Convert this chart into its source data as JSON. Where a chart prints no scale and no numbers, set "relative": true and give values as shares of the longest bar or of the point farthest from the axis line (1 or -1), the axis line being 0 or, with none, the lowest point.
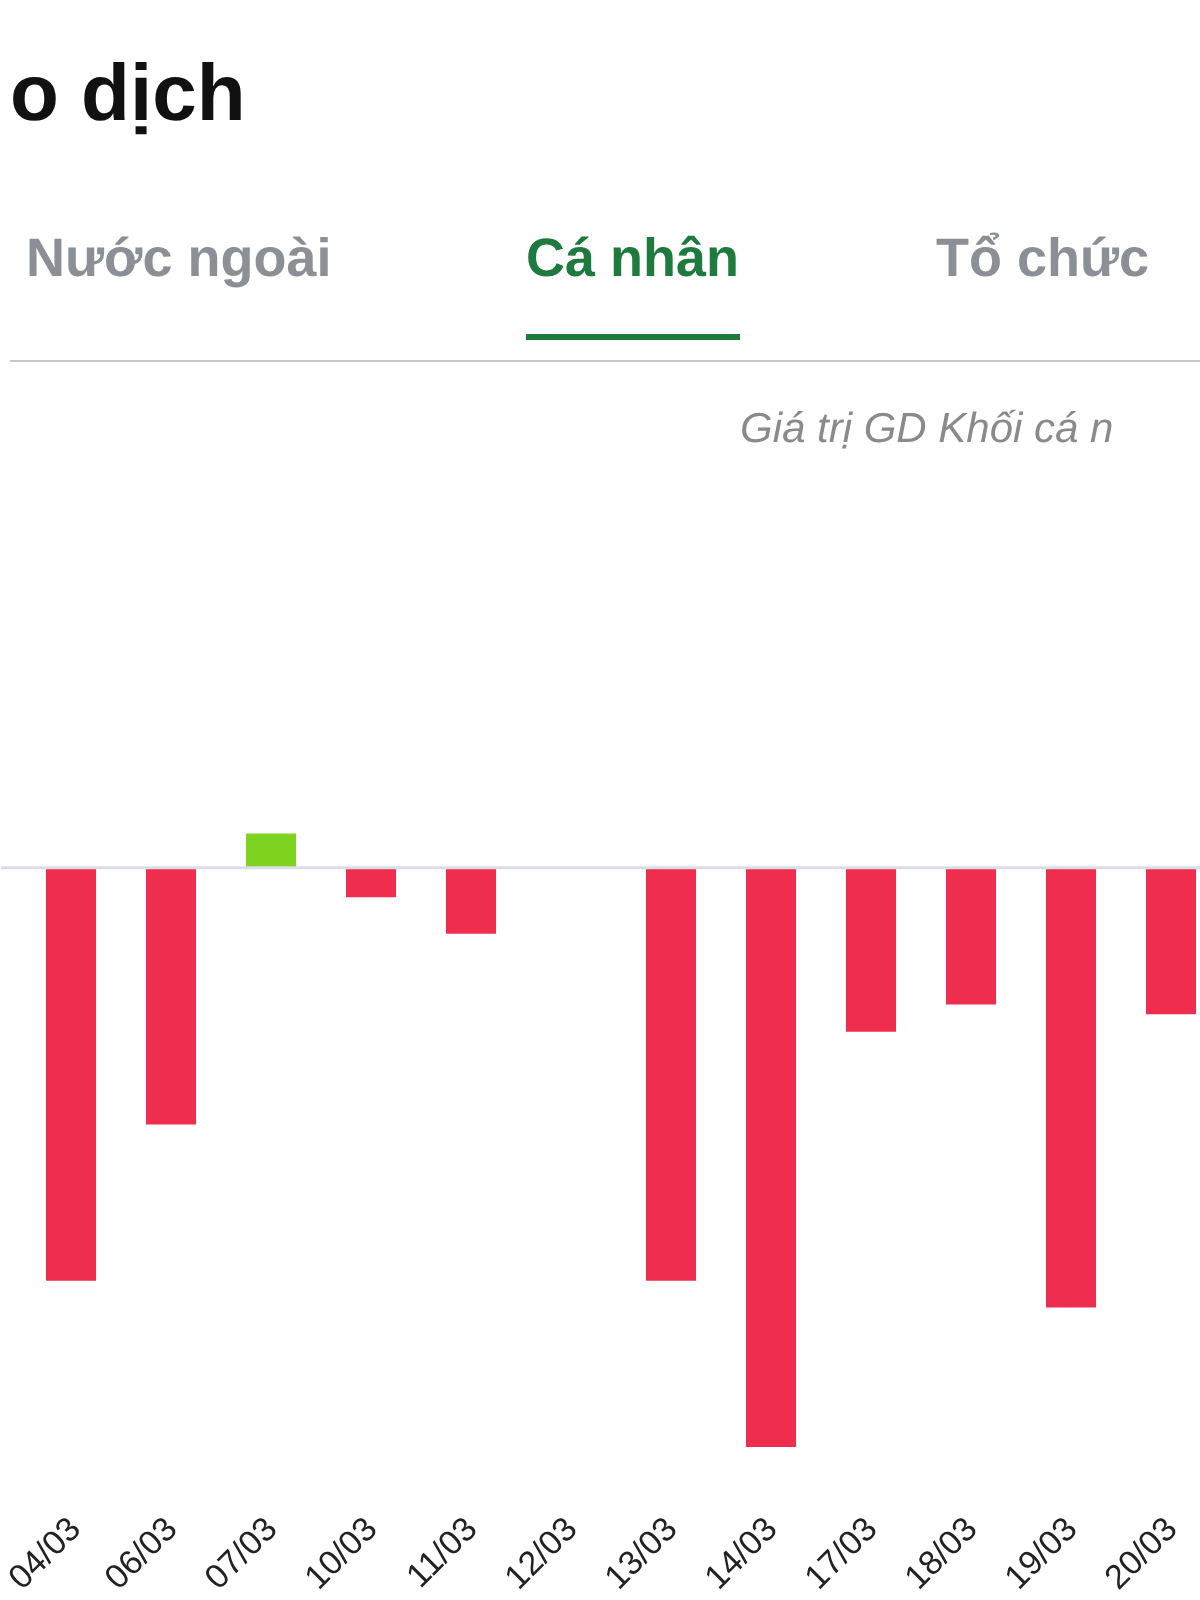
{
  "chart_data": {
    "type": "bar",
    "title": "o dịch",
    "subtitle": "Giá trị GD Khối cá n",
    "annotations": [
      "Nước ngoài",
      "Cá nhân",
      "Tổ chức"
    ],
    "categories": [
      "04/03",
      "06/03",
      "07/03",
      "10/03",
      "11/03",
      "12/03",
      "13/03",
      "14/03",
      "17/03",
      "18/03",
      "19/03",
      "20/03"
    ],
    "values": [
      -0.713,
      -0.443,
      0.059,
      -0.051,
      -0.114,
      0,
      -0.713,
      -1,
      -0.283,
      -0.236,
      -0.759,
      -0.253
    ],
    "colors": [
      "#ef2d4e",
      "#ef2d4e",
      "#7ed321",
      "#ef2d4e",
      "#ef2d4e",
      "#ef2d4e",
      "#ef2d4e",
      "#ef2d4e",
      "#ef2d4e",
      "#ef2d4e",
      "#ef2d4e",
      "#ef2d4e"
    ],
    "relative": true
  }
}
